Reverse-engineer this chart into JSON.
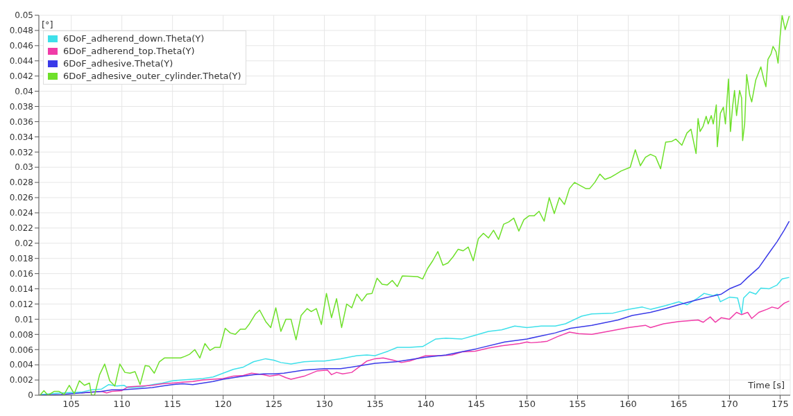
{
  "chart_data": {
    "type": "line",
    "xlabel": "Time [s]",
    "ylabel": "[°]",
    "xlim": [
      101.8,
      176
    ],
    "xticks": [
      105,
      110,
      115,
      120,
      125,
      130,
      135,
      140,
      145,
      150,
      155,
      160,
      165,
      170,
      175
    ],
    "ylim": [
      0,
      0.05
    ],
    "yticks": [
      0,
      0.002,
      0.004,
      0.006,
      0.008,
      0.01,
      0.012,
      0.014,
      0.016,
      0.018,
      0.02,
      0.022,
      0.024,
      0.026,
      0.028,
      0.03,
      0.032,
      0.034,
      0.036,
      0.038,
      0.04,
      0.042,
      0.044,
      0.046,
      0.048,
      0.05
    ],
    "grid": true,
    "legend": "top left",
    "marker": "none",
    "line_style": "solid",
    "series": [
      {
        "name": "6DoF_adherend_down.Theta(Y)",
        "color": "#3ee0ea",
        "x": [
          102,
          104,
          106,
          107,
          108,
          108.7,
          109.5,
          110.2,
          110.6,
          112,
          113,
          114,
          115,
          116,
          117,
          118,
          119,
          120,
          121,
          122,
          123,
          124.2,
          125,
          125.7,
          126.7,
          128,
          129.3,
          130,
          131.6,
          133.2,
          134.2,
          135,
          136.3,
          137.2,
          138.4,
          139.7,
          141,
          142,
          143.6,
          144.9,
          146.2,
          147.5,
          148.8,
          150,
          151.4,
          152.8,
          153.8,
          155.4,
          156.4,
          158.5,
          160,
          161.4,
          162.2,
          163.7,
          165,
          165.8,
          166.9,
          167.5,
          168.4,
          168.8,
          169.1,
          170,
          170.8,
          171.2,
          171.4,
          172,
          172.6,
          173.1,
          173.9,
          174.7,
          175.2,
          175.9
        ],
        "values": [
          0.0001,
          0.0003,
          0.0004,
          0.0007,
          0.0008,
          0.0014,
          0.0012,
          0.0013,
          0.001,
          0.0011,
          0.0014,
          0.0016,
          0.0019,
          0.002,
          0.0021,
          0.0022,
          0.0024,
          0.0029,
          0.0034,
          0.0037,
          0.0044,
          0.0048,
          0.0046,
          0.0043,
          0.0041,
          0.0044,
          0.0045,
          0.0045,
          0.0048,
          0.0052,
          0.0053,
          0.0052,
          0.0058,
          0.0063,
          0.0063,
          0.0064,
          0.0074,
          0.0075,
          0.0074,
          0.0079,
          0.0084,
          0.0086,
          0.0091,
          0.0089,
          0.0091,
          0.0091,
          0.0094,
          0.0104,
          0.0107,
          0.0108,
          0.0113,
          0.0116,
          0.0113,
          0.0118,
          0.0123,
          0.0119,
          0.0128,
          0.0134,
          0.0131,
          0.0133,
          0.0123,
          0.0129,
          0.0128,
          0.0107,
          0.0128,
          0.0136,
          0.0133,
          0.0141,
          0.014,
          0.0145,
          0.0153,
          0.0155
        ]
      },
      {
        "name": "6DoF_adherend_top.Theta(Y)",
        "color": "#f03ca8",
        "x": [
          106,
          108,
          108.5,
          109,
          110,
          110.6,
          112,
          113,
          114,
          115,
          116,
          117,
          118,
          119,
          120,
          121,
          122,
          122.8,
          124,
          124.6,
          125.5,
          126.2,
          126.7,
          128,
          129.3,
          130.3,
          130.7,
          131.2,
          131.8,
          132.7,
          133.5,
          134.2,
          135,
          135.8,
          136.8,
          137.6,
          138.4,
          140,
          141.5,
          142.6,
          143.6,
          144.9,
          146.2,
          147.5,
          149.3,
          150,
          150.4,
          151.4,
          152,
          153,
          154.2,
          155.1,
          156.4,
          158,
          160,
          161.7,
          162.2,
          163.5,
          165,
          166.9,
          167.4,
          168.1,
          168.6,
          169.2,
          170,
          170.7,
          171.2,
          171.8,
          172.2,
          172.9,
          173.7,
          174.2,
          174.8,
          175.4,
          175.9
        ],
        "values": [
          0.0003,
          0.0005,
          0.0003,
          0.0005,
          0.0006,
          0.0011,
          0.0012,
          0.0013,
          0.0015,
          0.0016,
          0.0017,
          0.0018,
          0.002,
          0.0021,
          0.0022,
          0.0025,
          0.0026,
          0.0029,
          0.0027,
          0.0025,
          0.0027,
          0.0023,
          0.0021,
          0.0025,
          0.0032,
          0.0033,
          0.0027,
          0.003,
          0.0028,
          0.003,
          0.0038,
          0.0045,
          0.0048,
          0.0049,
          0.0046,
          0.0043,
          0.0045,
          0.0052,
          0.0052,
          0.0053,
          0.0057,
          0.0058,
          0.0062,
          0.0065,
          0.0068,
          0.007,
          0.0069,
          0.007,
          0.0071,
          0.0077,
          0.0083,
          0.0081,
          0.008,
          0.0084,
          0.0089,
          0.0092,
          0.0089,
          0.0094,
          0.0097,
          0.0099,
          0.0096,
          0.0103,
          0.0096,
          0.0102,
          0.01,
          0.0109,
          0.0106,
          0.0109,
          0.0101,
          0.0109,
          0.0113,
          0.0116,
          0.0114,
          0.0121,
          0.0124
        ]
      },
      {
        "name": "6DoF_adhesive.Theta(Y)",
        "color": "#3a3ae8",
        "x": [
          102,
          104,
          106,
          108,
          109,
          110,
          111,
          112,
          113,
          114,
          115,
          116,
          117,
          118,
          119,
          120,
          121,
          122,
          123,
          124,
          125,
          126,
          128,
          130,
          131.6,
          133.2,
          135,
          137.1,
          140,
          142,
          145,
          147.8,
          150,
          151.4,
          152.8,
          154.3,
          156.4,
          159,
          160.4,
          162.2,
          163.7,
          165,
          166.4,
          167.9,
          169.2,
          170,
          171.1,
          171.8,
          172.9,
          173.9,
          174.7,
          175.4,
          175.9
        ],
        "values": [
          0,
          0.0001,
          0.0003,
          0.0005,
          0.0007,
          0.0007,
          0.0008,
          0.0009,
          0.001,
          0.0012,
          0.0014,
          0.0015,
          0.0014,
          0.0016,
          0.0018,
          0.0021,
          0.0023,
          0.0025,
          0.0027,
          0.0028,
          0.0028,
          0.0029,
          0.0033,
          0.0035,
          0.0035,
          0.0038,
          0.0042,
          0.0044,
          0.005,
          0.0053,
          0.0061,
          0.007,
          0.0074,
          0.0078,
          0.0082,
          0.0088,
          0.0092,
          0.0099,
          0.0105,
          0.0109,
          0.0114,
          0.0119,
          0.0124,
          0.0129,
          0.0133,
          0.014,
          0.0146,
          0.0155,
          0.0168,
          0.0187,
          0.0202,
          0.0217,
          0.0229
        ]
      },
      {
        "name": "6DoF_adhesive_outer_cylinder.Theta(Y)",
        "color": "#6ee02a",
        "x": [
          101.9,
          102.3,
          102.7,
          103.3,
          103.8,
          104.3,
          104.8,
          105.3,
          105.8,
          106.3,
          106.8,
          107,
          107.3,
          107.8,
          108.3,
          108.8,
          109.3,
          109.8,
          110.3,
          110.8,
          111.3,
          111.8,
          112.3,
          112.7,
          113.2,
          113.7,
          114.2,
          114.8,
          115.8,
          116.2,
          116.7,
          117.2,
          117.7,
          118.2,
          118.7,
          119.2,
          119.7,
          120.2,
          120.7,
          121.2,
          121.7,
          122.2,
          122.6,
          123.2,
          123.6,
          124.2,
          124.7,
          125.2,
          125.7,
          126.2,
          126.7,
          127.2,
          127.7,
          128.3,
          128.7,
          129.2,
          129.7,
          130.2,
          130.7,
          131.2,
          131.7,
          132.2,
          132.7,
          133.2,
          133.7,
          134.2,
          134.7,
          135.2,
          135.7,
          136.2,
          136.7,
          137.2,
          137.7,
          139.2,
          139.7,
          140.2,
          140.7,
          141.2,
          141.7,
          142.2,
          142.7,
          143.2,
          143.7,
          144.2,
          144.7,
          145.2,
          145.7,
          146.2,
          146.7,
          147.2,
          147.7,
          148.2,
          148.7,
          149.2,
          149.7,
          150.2,
          150.7,
          151.2,
          151.7,
          152.2,
          152.7,
          153.2,
          153.7,
          154.2,
          154.7,
          155.8,
          156.2,
          156.7,
          157.2,
          157.7,
          158.3,
          158.8,
          159.3,
          160.2,
          160.7,
          161.2,
          161.7,
          162.2,
          162.7,
          163.2,
          163.7,
          164.3,
          164.7,
          165.3,
          165.8,
          166.2,
          166.7,
          166.9,
          167.1,
          167.4,
          167.7,
          167.9,
          168.2,
          168.4,
          168.7,
          168.8,
          169.1,
          169.4,
          169.6,
          169.9,
          170.1,
          170.3,
          170.5,
          170.7,
          171,
          171.2,
          171.3,
          171.5,
          171.7,
          172,
          172.2,
          172.6,
          173.1,
          173.4,
          173.6,
          173.8,
          174.1,
          174.3,
          174.6,
          174.8,
          175,
          175.2,
          175.5,
          175.9
        ],
        "values": [
          0,
          0.0006,
          0,
          0.0005,
          0.0005,
          0.0001,
          0.0013,
          0.0002,
          0.0019,
          0.0013,
          0.0016,
          0,
          0,
          0.0027,
          0.0041,
          0.0019,
          0.0012,
          0.0041,
          0.003,
          0.0029,
          0.0031,
          0.0014,
          0.0039,
          0.0038,
          0.0029,
          0.0044,
          0.0049,
          0.0049,
          0.0049,
          0.0051,
          0.0054,
          0.006,
          0.0049,
          0.0068,
          0.0059,
          0.0063,
          0.0063,
          0.0088,
          0.0082,
          0.008,
          0.0087,
          0.0087,
          0.0094,
          0.0107,
          0.0112,
          0.0097,
          0.0089,
          0.0115,
          0.0084,
          0.01,
          0.01,
          0.0073,
          0.0105,
          0.0114,
          0.011,
          0.0114,
          0.0093,
          0.0134,
          0.0102,
          0.0127,
          0.0089,
          0.012,
          0.0115,
          0.0133,
          0.0124,
          0.0133,
          0.0134,
          0.0154,
          0.0146,
          0.0145,
          0.0151,
          0.0143,
          0.0157,
          0.0156,
          0.0153,
          0.0167,
          0.0177,
          0.0189,
          0.0171,
          0.0174,
          0.0182,
          0.0192,
          0.019,
          0.0195,
          0.0177,
          0.0206,
          0.0213,
          0.0207,
          0.0217,
          0.0205,
          0.0225,
          0.0228,
          0.0233,
          0.0216,
          0.0231,
          0.0236,
          0.0236,
          0.0242,
          0.0229,
          0.026,
          0.0239,
          0.026,
          0.0251,
          0.0272,
          0.028,
          0.0272,
          0.0272,
          0.028,
          0.0291,
          0.0284,
          0.0287,
          0.0291,
          0.0295,
          0.03,
          0.0323,
          0.0302,
          0.0313,
          0.0317,
          0.0314,
          0.0298,
          0.0333,
          0.0334,
          0.0337,
          0.0329,
          0.0345,
          0.035,
          0.0318,
          0.0364,
          0.0347,
          0.0354,
          0.0367,
          0.0357,
          0.0368,
          0.0357,
          0.0382,
          0.0327,
          0.0371,
          0.0379,
          0.0357,
          0.0416,
          0.0347,
          0.0379,
          0.0401,
          0.0368,
          0.0401,
          0.0391,
          0.0335,
          0.0357,
          0.0422,
          0.0395,
          0.0386,
          0.0415,
          0.0432,
          0.0415,
          0.0406,
          0.0442,
          0.0449,
          0.0459,
          0.0452,
          0.0437,
          0.0472,
          0.05,
          0.0481,
          0.0499
        ]
      }
    ]
  }
}
